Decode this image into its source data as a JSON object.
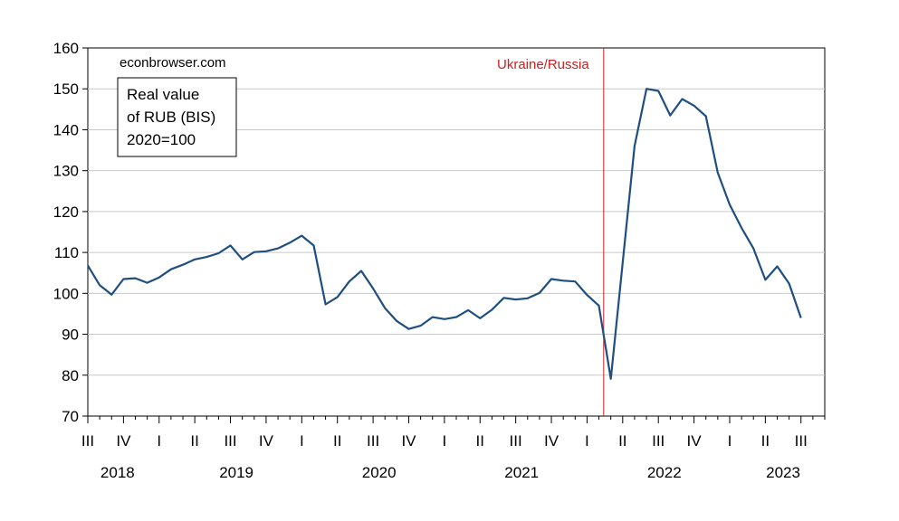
{
  "chart_data": {
    "type": "line",
    "source_note": "econbrowser.com",
    "legend_box": [
      "Real value",
      "of RUB (BIS)",
      "2020=100"
    ],
    "event": {
      "label": "Ukraine/Russia",
      "month_index": 43.4,
      "color": "#cc1f1f"
    },
    "ylim": [
      70,
      160
    ],
    "yticks": [
      70,
      80,
      90,
      100,
      110,
      120,
      130,
      140,
      150,
      160
    ],
    "x_start": "2018-07",
    "n_months": 63,
    "quarter_ticks": [
      {
        "m": 0,
        "label": "III"
      },
      {
        "m": 3,
        "label": "IV"
      },
      {
        "m": 6,
        "label": "I"
      },
      {
        "m": 9,
        "label": "II"
      },
      {
        "m": 12,
        "label": "III"
      },
      {
        "m": 15,
        "label": "IV"
      },
      {
        "m": 18,
        "label": "I"
      },
      {
        "m": 21,
        "label": "II"
      },
      {
        "m": 24,
        "label": "III"
      },
      {
        "m": 27,
        "label": "IV"
      },
      {
        "m": 30,
        "label": "I"
      },
      {
        "m": 33,
        "label": "II"
      },
      {
        "m": 36,
        "label": "III"
      },
      {
        "m": 39,
        "label": "IV"
      },
      {
        "m": 42,
        "label": "I"
      },
      {
        "m": 45,
        "label": "II"
      },
      {
        "m": 48,
        "label": "III"
      },
      {
        "m": 51,
        "label": "IV"
      },
      {
        "m": 54,
        "label": "I"
      },
      {
        "m": 57,
        "label": "II"
      },
      {
        "m": 60,
        "label": "III"
      }
    ],
    "year_labels": [
      {
        "m": 2.5,
        "label": "2018"
      },
      {
        "m": 12.5,
        "label": "2019"
      },
      {
        "m": 24.5,
        "label": "2020"
      },
      {
        "m": 36.5,
        "label": "2021"
      },
      {
        "m": 48.5,
        "label": "2022"
      },
      {
        "m": 58.5,
        "label": "2023"
      }
    ],
    "series": [
      {
        "name": "Real value of RUB (BIS)",
        "color": "#1f4e80",
        "values": [
          106.8,
          102.0,
          99.7,
          103.5,
          103.7,
          102.6,
          103.9,
          105.9,
          107.0,
          108.3,
          108.9,
          109.8,
          111.7,
          108.3,
          110.1,
          110.3,
          111.0,
          112.4,
          114.1,
          111.7,
          97.3,
          99.1,
          102.9,
          105.5,
          101.2,
          96.4,
          93.2,
          91.3,
          92.1,
          94.2,
          93.7,
          94.2,
          95.9,
          93.9,
          96.0,
          98.9,
          98.5,
          98.8,
          100.1,
          103.5,
          103.1,
          102.9,
          99.6,
          97.0,
          79.1,
          107.5,
          136.0,
          150.0,
          149.5,
          143.5,
          147.5,
          145.9,
          143.3,
          129.5,
          121.7,
          116.0,
          111.0,
          103.3,
          106.6,
          102.4,
          94.0
        ]
      }
    ]
  }
}
